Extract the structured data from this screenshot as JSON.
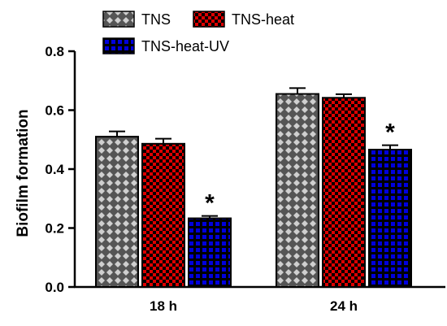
{
  "chart_data": {
    "type": "bar",
    "categories": [
      "18  h",
      "24 h"
    ],
    "ylabel": "Biofilm formation",
    "xlabel": "",
    "ylim": [
      0,
      0.8
    ],
    "yticks": [
      "0.0",
      "0.2",
      "0.4",
      "0.6",
      "0.8"
    ],
    "grid": false,
    "legend_position": "top",
    "series": [
      {
        "name": "TNS",
        "values": [
          0.51,
          0.655
        ],
        "errors": [
          0.018,
          0.02
        ],
        "color": "#555555",
        "pattern": "diamonds-light",
        "annotations": [
          "",
          ""
        ]
      },
      {
        "name": "TNS-heat",
        "values": [
          0.486,
          0.642
        ],
        "errors": [
          0.017,
          0.012
        ],
        "color": "#dd0000",
        "pattern": "checker-black",
        "annotations": [
          "",
          ""
        ]
      },
      {
        "name": "TNS-heat-UV",
        "values": [
          0.233,
          0.466
        ],
        "errors": [
          0.008,
          0.015
        ],
        "color": "#0000cc",
        "pattern": "grid-black",
        "annotations": [
          "*",
          "*"
        ]
      }
    ]
  }
}
